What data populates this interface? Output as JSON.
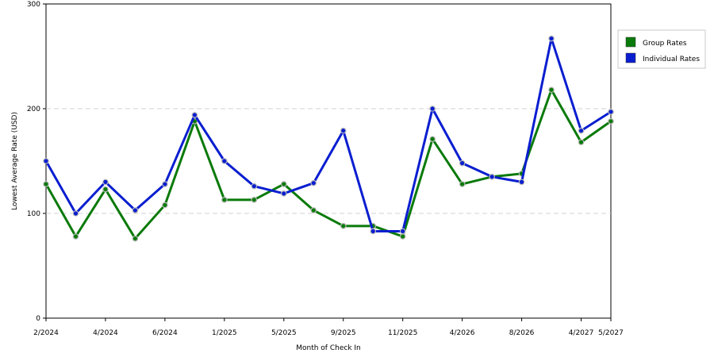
{
  "chart_data": {
    "type": "line",
    "title": "",
    "xlabel": "Month of Check In",
    "ylabel": "Lowest Average Rate (USD)",
    "ylim": [
      0,
      300
    ],
    "yticks": [
      0,
      100,
      200,
      300
    ],
    "grid": "horizontal dashed",
    "legend_position": "right",
    "x_ticks": [
      {
        "index": 0,
        "label": "2/2024"
      },
      {
        "index": 2,
        "label": "4/2024"
      },
      {
        "index": 4,
        "label": "6/2024"
      },
      {
        "index": 6,
        "label": "1/2025"
      },
      {
        "index": 8,
        "label": "5/2025"
      },
      {
        "index": 10,
        "label": "9/2025"
      },
      {
        "index": 12,
        "label": "11/2025"
      },
      {
        "index": 14,
        "label": "4/2026"
      },
      {
        "index": 16,
        "label": "8/2026"
      },
      {
        "index": 18,
        "label": "4/2027"
      },
      {
        "index": 19,
        "label": "5/2027"
      }
    ],
    "series": [
      {
        "name": "Group Rates",
        "color": "#0a7a0a",
        "values": [
          128,
          78,
          123,
          76,
          108,
          188,
          113,
          113,
          128,
          103,
          88,
          88,
          78,
          171,
          128,
          135,
          138,
          218,
          168,
          188
        ]
      },
      {
        "name": "Individual Rates",
        "color": "#0a1ed0",
        "values": [
          150,
          100,
          130,
          103,
          128,
          194,
          150,
          126,
          119,
          129,
          179,
          83,
          83,
          200,
          148,
          135,
          130,
          267,
          179,
          197
        ]
      }
    ]
  }
}
